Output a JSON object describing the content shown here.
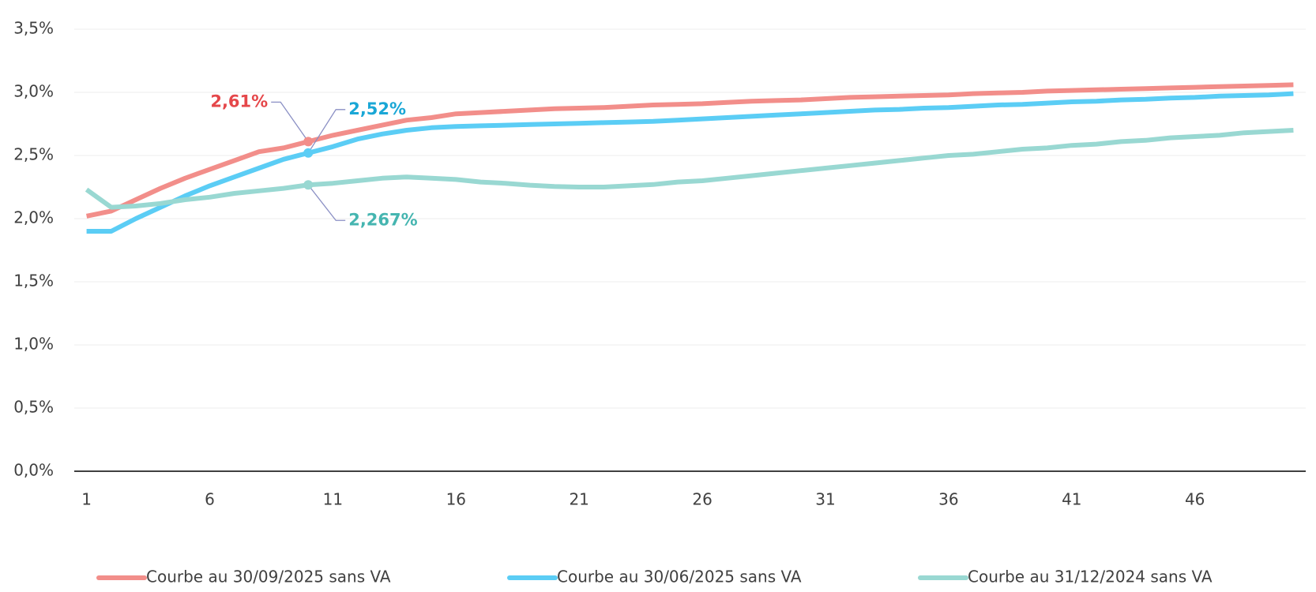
{
  "chart_data": {
    "type": "line",
    "x": [
      1,
      2,
      3,
      4,
      5,
      6,
      7,
      8,
      9,
      10,
      11,
      12,
      13,
      14,
      15,
      16,
      17,
      18,
      19,
      20,
      21,
      22,
      23,
      24,
      25,
      26,
      27,
      28,
      29,
      30,
      31,
      32,
      33,
      34,
      35,
      36,
      37,
      38,
      39,
      40,
      41,
      42,
      43,
      44,
      45,
      46,
      47,
      48,
      49,
      50
    ],
    "xlim": [
      0.5,
      50.5
    ],
    "xticks": [
      1,
      6,
      11,
      16,
      21,
      26,
      31,
      36,
      41,
      46
    ],
    "ylim": [
      0,
      3.5
    ],
    "yticks": [
      {
        "value": 0,
        "label": "0,0%"
      },
      {
        "value": 0.5,
        "label": "0,5%"
      },
      {
        "value": 1,
        "label": "1,0%"
      },
      {
        "value": 1.5,
        "label": "1,5%"
      },
      {
        "value": 2,
        "label": "2,0%"
      },
      {
        "value": 2.5,
        "label": "2,5%"
      },
      {
        "value": 3,
        "label": "3,0%"
      },
      {
        "value": 3.5,
        "label": "3,5%"
      }
    ],
    "grid": true,
    "legend": "bottom",
    "series": [
      {
        "name": "Courbe au 30/09/2025 sans VA",
        "color": "#f28e8a",
        "values": [
          2.02,
          2.06,
          2.15,
          2.24,
          2.32,
          2.39,
          2.46,
          2.53,
          2.56,
          2.61,
          2.66,
          2.7,
          2.74,
          2.78,
          2.8,
          2.83,
          2.84,
          2.85,
          2.86,
          2.87,
          2.875,
          2.88,
          2.89,
          2.9,
          2.905,
          2.91,
          2.92,
          2.93,
          2.935,
          2.94,
          2.95,
          2.96,
          2.965,
          2.97,
          2.975,
          2.98,
          2.99,
          2.995,
          3.0,
          3.01,
          3.015,
          3.02,
          3.025,
          3.03,
          3.035,
          3.04,
          3.045,
          3.05,
          3.055,
          3.06
        ]
      },
      {
        "name": "Courbe au 30/06/2025 sans VA",
        "color": "#5bcdf5",
        "values": [
          1.9,
          1.9,
          2.0,
          2.09,
          2.18,
          2.26,
          2.33,
          2.4,
          2.47,
          2.52,
          2.57,
          2.63,
          2.67,
          2.7,
          2.72,
          2.73,
          2.735,
          2.74,
          2.745,
          2.75,
          2.755,
          2.76,
          2.765,
          2.77,
          2.78,
          2.79,
          2.8,
          2.81,
          2.82,
          2.83,
          2.84,
          2.85,
          2.86,
          2.865,
          2.875,
          2.88,
          2.89,
          2.9,
          2.905,
          2.915,
          2.925,
          2.93,
          2.94,
          2.945,
          2.955,
          2.96,
          2.97,
          2.975,
          2.98,
          2.99
        ]
      },
      {
        "name": "Courbe au 31/12/2024 sans VA",
        "color": "#99d8d2",
        "values": [
          2.23,
          2.09,
          2.1,
          2.12,
          2.15,
          2.17,
          2.2,
          2.22,
          2.24,
          2.267,
          2.28,
          2.3,
          2.32,
          2.33,
          2.32,
          2.31,
          2.29,
          2.28,
          2.265,
          2.255,
          2.25,
          2.25,
          2.26,
          2.27,
          2.29,
          2.3,
          2.32,
          2.34,
          2.36,
          2.38,
          2.4,
          2.42,
          2.44,
          2.46,
          2.48,
          2.5,
          2.51,
          2.53,
          2.55,
          2.56,
          2.58,
          2.59,
          2.61,
          2.62,
          2.64,
          2.65,
          2.66,
          2.68,
          2.69,
          2.7
        ]
      }
    ],
    "annotations": [
      {
        "text": "2,61%",
        "x": 10,
        "y": 2.61,
        "color": "#e5474a"
      },
      {
        "text": "2,52%",
        "x": 10,
        "y": 2.52,
        "color": "#1aa7d6"
      },
      {
        "text": "2,267%",
        "x": 10,
        "y": 2.267,
        "color": "#45b5b0"
      }
    ]
  }
}
